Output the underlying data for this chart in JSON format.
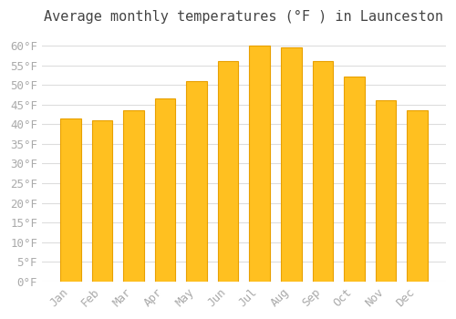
{
  "title": "Average monthly temperatures (°F ) in Launceston",
  "months": [
    "Jan",
    "Feb",
    "Mar",
    "Apr",
    "May",
    "Jun",
    "Jul",
    "Aug",
    "Sep",
    "Oct",
    "Nov",
    "Dec"
  ],
  "values": [
    41.5,
    41.0,
    43.5,
    46.5,
    51.0,
    56.0,
    60.0,
    59.5,
    56.0,
    52.0,
    46.0,
    43.5
  ],
  "bar_color": "#FFC020",
  "bar_edge_color": "#E8A000",
  "background_color": "#FFFFFF",
  "grid_color": "#DDDDDD",
  "tick_label_color": "#AAAAAA",
  "title_color": "#444444",
  "ylim": [
    0,
    63
  ],
  "yticks": [
    0,
    5,
    10,
    15,
    20,
    25,
    30,
    35,
    40,
    45,
    50,
    55,
    60
  ],
  "ylabel_suffix": "°F",
  "title_fontsize": 11,
  "tick_fontsize": 9
}
